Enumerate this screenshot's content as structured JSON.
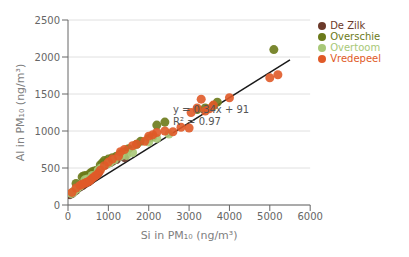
{
  "chart_data": {
    "type": "scatter",
    "xlabel": "Si in PM₁₀ (ng/m³)",
    "ylabel": "Al in PM₁₀ (ng/m³)",
    "xlim": [
      0,
      6000
    ],
    "ylim": [
      0,
      2500
    ],
    "xticks": [
      0,
      1000,
      2000,
      3000,
      4000,
      5000,
      6000
    ],
    "yticks": [
      0,
      500,
      1000,
      1500,
      2000,
      2500
    ],
    "grid": true,
    "legend": "right",
    "annotation": {
      "text": "y = 0.34x + 91\nR² = 0.97",
      "x": 2600,
      "y": 1200
    },
    "series": [
      {
        "type": "line",
        "color": "#1a1a1a",
        "values": [
          [
            0,
            91
          ],
          [
            5500,
            1961
          ]
        ]
      },
      {
        "name": "De Zilk",
        "color": "#6b3a2a",
        "marker": "circle",
        "values": [
          [
            50,
            140
          ],
          [
            100,
            155
          ],
          [
            150,
            180
          ],
          [
            200,
            200
          ],
          [
            280,
            240
          ],
          [
            350,
            260
          ],
          [
            400,
            280
          ],
          [
            500,
            310
          ],
          [
            550,
            330
          ],
          [
            650,
            390
          ],
          [
            700,
            420
          ],
          [
            750,
            430
          ],
          [
            800,
            490
          ],
          [
            900,
            540
          ],
          [
            950,
            550
          ],
          [
            1000,
            570
          ],
          [
            1050,
            575
          ],
          [
            1100,
            590
          ],
          [
            1200,
            615
          ],
          [
            1400,
            640
          ]
        ]
      },
      {
        "name": "Overschie",
        "color": "#6b7a1a",
        "marker": "circle",
        "values": [
          [
            200,
            290
          ],
          [
            350,
            380
          ],
          [
            400,
            395
          ],
          [
            450,
            400
          ],
          [
            550,
            430
          ],
          [
            600,
            450
          ],
          [
            650,
            460
          ],
          [
            700,
            465
          ],
          [
            800,
            540
          ],
          [
            850,
            570
          ],
          [
            900,
            600
          ],
          [
            1000,
            620
          ],
          [
            1100,
            640
          ],
          [
            1200,
            660
          ],
          [
            1300,
            690
          ],
          [
            1350,
            700
          ],
          [
            1400,
            720
          ],
          [
            1500,
            760
          ],
          [
            1700,
            820
          ],
          [
            1800,
            860
          ],
          [
            2000,
            900
          ],
          [
            2100,
            920
          ],
          [
            2200,
            1080
          ],
          [
            2400,
            1120
          ],
          [
            3200,
            1290
          ],
          [
            3400,
            1310
          ],
          [
            3600,
            1340
          ],
          [
            3700,
            1390
          ],
          [
            5100,
            2100
          ]
        ]
      },
      {
        "name": "Overtoom",
        "color": "#a8c878",
        "marker": "circle",
        "values": [
          [
            80,
            155
          ],
          [
            130,
            170
          ],
          [
            160,
            195
          ],
          [
            220,
            215
          ],
          [
            300,
            255
          ],
          [
            420,
            340
          ],
          [
            480,
            350
          ],
          [
            600,
            400
          ],
          [
            750,
            470
          ],
          [
            820,
            500
          ],
          [
            1000,
            560
          ],
          [
            1050,
            580
          ],
          [
            1150,
            610
          ],
          [
            1300,
            660
          ],
          [
            1450,
            670
          ],
          [
            1600,
            710
          ],
          [
            2000,
            850
          ],
          [
            2200,
            900
          ],
          [
            2500,
            960
          ]
        ]
      },
      {
        "name": "Vredepeel",
        "color": "#e05a28",
        "marker": "circle",
        "values": [
          [
            100,
            170
          ],
          [
            200,
            230
          ],
          [
            300,
            265
          ],
          [
            350,
            280
          ],
          [
            420,
            295
          ],
          [
            450,
            305
          ],
          [
            500,
            315
          ],
          [
            550,
            335
          ],
          [
            600,
            360
          ],
          [
            650,
            380
          ],
          [
            700,
            400
          ],
          [
            750,
            430
          ],
          [
            800,
            470
          ],
          [
            900,
            530
          ],
          [
            1000,
            580
          ],
          [
            1100,
            620
          ],
          [
            1250,
            660
          ],
          [
            1300,
            720
          ],
          [
            1400,
            750
          ],
          [
            1600,
            800
          ],
          [
            1700,
            820
          ],
          [
            1900,
            860
          ],
          [
            2000,
            930
          ],
          [
            2100,
            950
          ],
          [
            2200,
            980
          ],
          [
            2400,
            1000
          ],
          [
            2600,
            990
          ],
          [
            2800,
            1050
          ],
          [
            3000,
            1040
          ],
          [
            3050,
            1250
          ],
          [
            3200,
            1310
          ],
          [
            3300,
            1430
          ],
          [
            3400,
            1270
          ],
          [
            3500,
            1300
          ],
          [
            3600,
            1350
          ],
          [
            4000,
            1450
          ],
          [
            5000,
            1720
          ],
          [
            5200,
            1760
          ]
        ]
      }
    ]
  }
}
